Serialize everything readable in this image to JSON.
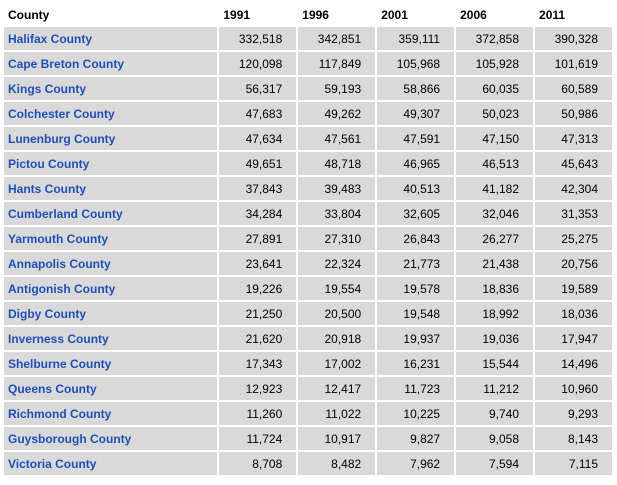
{
  "table": {
    "header": {
      "county": "County",
      "years": [
        "1991",
        "1996",
        "2001",
        "2006",
        "2011"
      ]
    },
    "rows": [
      {
        "county": "Halifax County",
        "values": [
          "332,518",
          "342,851",
          "359,111",
          "372,858",
          "390,328"
        ]
      },
      {
        "county": "Cape Breton County",
        "values": [
          "120,098",
          "117,849",
          "105,968",
          "105,928",
          "101,619"
        ]
      },
      {
        "county": "Kings County",
        "values": [
          "56,317",
          "59,193",
          "58,866",
          "60,035",
          "60,589"
        ]
      },
      {
        "county": "Colchester County",
        "values": [
          "47,683",
          "49,262",
          "49,307",
          "50,023",
          "50,986"
        ]
      },
      {
        "county": "Lunenburg County",
        "values": [
          "47,634",
          "47,561",
          "47,591",
          "47,150",
          "47,313"
        ]
      },
      {
        "county": "Pictou County",
        "values": [
          "49,651",
          "48,718",
          "46,965",
          "46,513",
          "45,643"
        ]
      },
      {
        "county": "Hants County",
        "values": [
          "37,843",
          "39,483",
          "40,513",
          "41,182",
          "42,304"
        ]
      },
      {
        "county": "Cumberland County",
        "values": [
          "34,284",
          "33,804",
          "32,605",
          "32,046",
          "31,353"
        ]
      },
      {
        "county": "Yarmouth County",
        "values": [
          "27,891",
          "27,310",
          "26,843",
          "26,277",
          "25,275"
        ]
      },
      {
        "county": "Annapolis County",
        "values": [
          "23,641",
          "22,324",
          "21,773",
          "21,438",
          "20,756"
        ]
      },
      {
        "county": "Antigonish County",
        "values": [
          "19,226",
          "19,554",
          "19,578",
          "18,836",
          "19,589"
        ]
      },
      {
        "county": "Digby County",
        "values": [
          "21,250",
          "20,500",
          "19,548",
          "18,992",
          "18,036"
        ]
      },
      {
        "county": "Inverness County",
        "values": [
          "21,620",
          "20,918",
          "19,937",
          "19,036",
          "17,947"
        ]
      },
      {
        "county": "Shelburne County",
        "values": [
          "17,343",
          "17,002",
          "16,231",
          "15,544",
          "14,496"
        ]
      },
      {
        "county": "Queens County",
        "values": [
          "12,923",
          "12,417",
          "11,723",
          "11,212",
          "10,960"
        ]
      },
      {
        "county": "Richmond County",
        "values": [
          "11,260",
          "11,022",
          "10,225",
          "9,740",
          "9,293"
        ]
      },
      {
        "county": "Guysborough County",
        "values": [
          "11,724",
          "10,917",
          "9,827",
          "9,058",
          "8,143"
        ]
      },
      {
        "county": "Victoria County",
        "values": [
          "8,708",
          "8,482",
          "7,962",
          "7,594",
          "7,115"
        ]
      }
    ]
  },
  "colors": {
    "county_link": "#1f4fb5",
    "cell_background": "#d9d9d9"
  }
}
